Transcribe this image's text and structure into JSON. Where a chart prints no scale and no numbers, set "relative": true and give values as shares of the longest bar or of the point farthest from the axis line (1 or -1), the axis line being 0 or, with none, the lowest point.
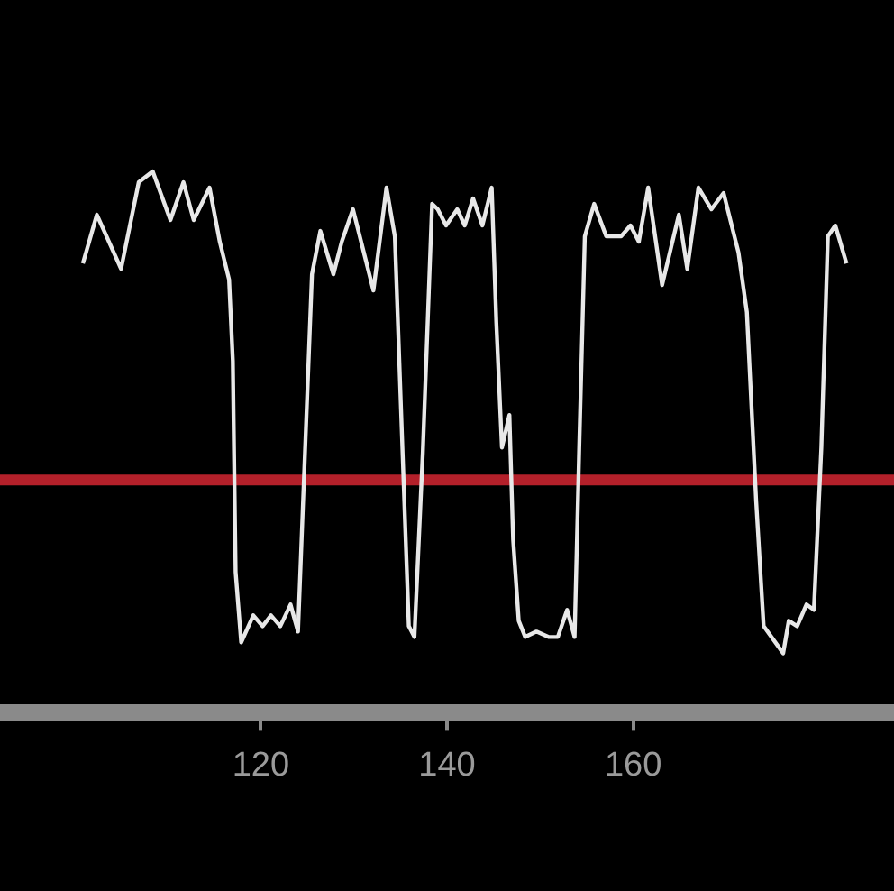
{
  "chart_data": {
    "type": "line",
    "relative": true,
    "xlim": [
      92,
      188
    ],
    "xticks": [
      120,
      140,
      160
    ],
    "grid": false,
    "legend": false,
    "marker": "none",
    "line_style": "solid",
    "ref_lines": [
      {
        "axis": "y",
        "value": 0.43,
        "color": "#b3202a"
      }
    ],
    "series": [
      {
        "color": "#e8e8e8",
        "x": [
          100.9,
          102.4,
          105.0,
          106.9,
          108.4,
          110.3,
          111.7,
          112.8,
          114.5,
          115.6,
          116.6,
          117.0,
          117.3,
          117.9,
          119.2,
          120.2,
          121.1,
          122.1,
          123.2,
          124.0,
          124.5,
          125.5,
          126.4,
          127.8,
          128.7,
          129.9,
          132.1,
          133.5,
          134.4,
          135.0,
          135.9,
          136.5,
          137.4,
          138.4,
          139.0,
          139.9,
          141.1,
          141.9,
          142.8,
          143.8,
          144.8,
          145.3,
          145.9,
          146.7,
          147.1,
          147.7,
          148.4,
          149.6,
          150.9,
          151.9,
          152.9,
          153.7,
          154.2,
          154.8,
          155.8,
          157.1,
          158.7,
          159.7,
          160.6,
          161.6,
          163.1,
          164.9,
          165.8,
          167.0,
          168.4,
          169.7,
          171.3,
          172.2,
          173.2,
          174.0,
          176.1,
          176.7,
          177.6,
          178.6,
          179.4,
          180.2,
          180.9,
          181.7,
          182.9
        ],
        "values": [
          0.83,
          0.92,
          0.82,
          0.98,
          1.0,
          0.91,
          0.98,
          0.91,
          0.97,
          0.87,
          0.8,
          0.65,
          0.26,
          0.13,
          0.18,
          0.16,
          0.18,
          0.16,
          0.2,
          0.15,
          0.37,
          0.81,
          0.89,
          0.81,
          0.87,
          0.93,
          0.78,
          0.97,
          0.88,
          0.59,
          0.16,
          0.14,
          0.48,
          0.94,
          0.93,
          0.9,
          0.93,
          0.9,
          0.95,
          0.9,
          0.97,
          0.72,
          0.49,
          0.55,
          0.32,
          0.17,
          0.14,
          0.15,
          0.14,
          0.14,
          0.19,
          0.14,
          0.49,
          0.88,
          0.94,
          0.88,
          0.88,
          0.9,
          0.87,
          0.97,
          0.79,
          0.92,
          0.82,
          0.97,
          0.93,
          0.96,
          0.85,
          0.74,
          0.39,
          0.16,
          0.11,
          0.17,
          0.16,
          0.2,
          0.19,
          0.49,
          0.88,
          0.9,
          0.83
        ]
      }
    ]
  }
}
